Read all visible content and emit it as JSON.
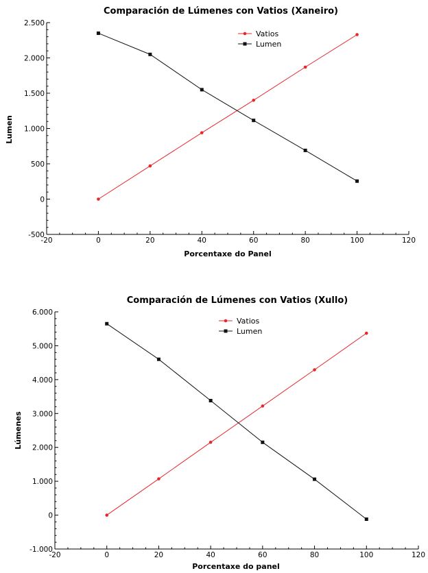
{
  "chart_data": [
    {
      "type": "line",
      "title": "Comparación de Lúmenes con Vatios (Xaneiro)",
      "xlabel": "Porcentaxe do Panel",
      "ylabel": "Lumen",
      "xlim": [
        -20,
        120
      ],
      "ylim": [
        -500,
        2500
      ],
      "xticks": [
        -20,
        0,
        20,
        40,
        60,
        80,
        100,
        120
      ],
      "xtick_labels": [
        "-20",
        "0",
        "20",
        "40",
        "60",
        "80",
        "100",
        "120"
      ],
      "yticks": [
        -500,
        0,
        500,
        1000,
        1500,
        2000,
        2500
      ],
      "ytick_labels": [
        "-500",
        "0",
        "500",
        "1.000",
        "1.500",
        "2.000",
        "2.500"
      ],
      "legend_position": "top-right",
      "grid": false,
      "x": [
        0,
        20,
        40,
        60,
        80,
        100
      ],
      "series": [
        {
          "name": "Vatios",
          "color": "#e8262b",
          "marker": "circle",
          "values": [
            0,
            470,
            940,
            1400,
            1870,
            2330
          ]
        },
        {
          "name": "Lumen",
          "color": "#111111",
          "marker": "square",
          "values": [
            2350,
            2050,
            1550,
            1115,
            690,
            255
          ]
        }
      ]
    },
    {
      "type": "line",
      "title": "Comparación de Lúmenes con Vatios (Xullo)",
      "xlabel": "Porcentaxe do panel",
      "ylabel": "Lúmenes",
      "xlim": [
        -20,
        120
      ],
      "ylim": [
        -1000,
        6000
      ],
      "xticks": [
        -20,
        0,
        20,
        40,
        60,
        80,
        100,
        120
      ],
      "xtick_labels": [
        "-20",
        "0",
        "20",
        "40",
        "60",
        "80",
        "100",
        "120"
      ],
      "yticks": [
        -1000,
        0,
        1000,
        2000,
        3000,
        4000,
        5000,
        6000
      ],
      "ytick_labels": [
        "-1.000",
        "0",
        "1.000",
        "2.000",
        "3.000",
        "4.000",
        "5.000",
        "6.000"
      ],
      "legend_position": "top-center",
      "grid": false,
      "x": [
        0,
        20,
        40,
        60,
        80,
        100
      ],
      "series": [
        {
          "name": "Vatios",
          "color": "#e8262b",
          "marker": "circle",
          "values": [
            0,
            1070,
            2150,
            3220,
            4290,
            5370
          ]
        },
        {
          "name": "Lumen",
          "color": "#111111",
          "marker": "square",
          "values": [
            5650,
            4600,
            3380,
            2150,
            1060,
            -120
          ]
        }
      ]
    }
  ]
}
